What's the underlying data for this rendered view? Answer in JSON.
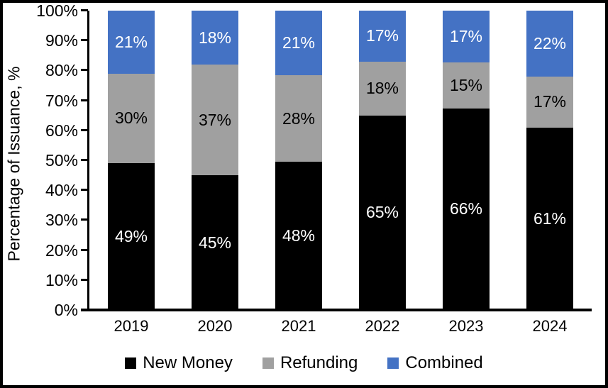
{
  "window": {
    "background_color": "#ffffff",
    "border_color": "#000000"
  },
  "chart_data": {
    "type": "bar",
    "stacked": true,
    "categories": [
      "2019",
      "2020",
      "2021",
      "2022",
      "2023",
      "2024"
    ],
    "series": [
      {
        "name": "New Money",
        "color": "#000000",
        "label_color": "#ffffff",
        "values": [
          49,
          45,
          48,
          65,
          66,
          61
        ]
      },
      {
        "name": "Refunding",
        "color": "#A0A0A0",
        "label_color": "#000000",
        "values": [
          30,
          37,
          28,
          18,
          15,
          17
        ]
      },
      {
        "name": "Combined",
        "color": "#4472C4",
        "label_color": "#ffffff",
        "values": [
          21,
          18,
          21,
          17,
          17,
          22
        ]
      }
    ],
    "xlabel": "",
    "ylabel": "Percentage of Issuance, %",
    "yticks": [
      "0%",
      "10%",
      "20%",
      "30%",
      "40%",
      "50%",
      "60%",
      "70%",
      "80%",
      "90%",
      "100%"
    ],
    "ylim": [
      0,
      100
    ],
    "value_suffix": "%",
    "grid": false,
    "legend_position": "bottom"
  }
}
